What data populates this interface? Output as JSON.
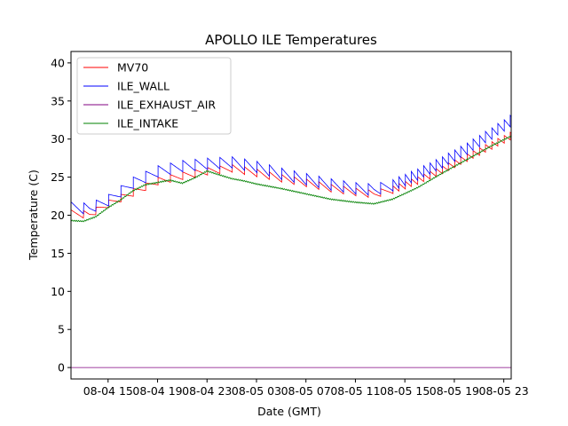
{
  "chart_data": {
    "type": "line",
    "title": "APOLLO ILE Temperatures",
    "xlabel": "Date (GMT)",
    "ylabel": "Temperature (C)",
    "ylim": [
      -1.5,
      41.5
    ],
    "xlim_hours": [
      12.0,
      47.6
    ],
    "x_unit": "hours since 08-04 00:00 GMT",
    "x_tick_labels": [
      "08-04 15",
      "08-04 19",
      "08-04 23",
      "08-05 03",
      "08-05 07",
      "08-05 11",
      "08-05 15",
      "08-05 19",
      "08-05 23"
    ],
    "x_tick_hours": [
      15,
      19,
      23,
      27,
      31,
      35,
      39,
      43,
      47
    ],
    "y_ticks": [
      0,
      5,
      10,
      15,
      20,
      25,
      30,
      35,
      40
    ],
    "grid": false,
    "legend_position": "top-left",
    "series": [
      {
        "name": "MV70",
        "color": "#ff0000",
        "sawtooth_amp": 1.0,
        "points": [
          [
            12.0,
            20.2
          ],
          [
            13.5,
            20.1
          ],
          [
            15.0,
            21.5
          ],
          [
            17.0,
            23.0
          ],
          [
            19.0,
            24.5
          ],
          [
            21.0,
            25.2
          ],
          [
            23.0,
            25.8
          ],
          [
            25.0,
            26.2
          ],
          [
            27.0,
            25.6
          ],
          [
            29.0,
            24.9
          ],
          [
            31.0,
            24.3
          ],
          [
            33.0,
            23.6
          ],
          [
            35.0,
            23.1
          ],
          [
            36.5,
            22.8
          ],
          [
            38.0,
            23.4
          ],
          [
            40.0,
            24.6
          ],
          [
            42.0,
            26.0
          ],
          [
            44.0,
            27.6
          ],
          [
            46.0,
            29.2
          ],
          [
            47.6,
            30.5
          ]
        ]
      },
      {
        "name": "ILE_WALL",
        "color": "#0000ff",
        "sawtooth_amp": 1.5,
        "points": [
          [
            12.0,
            21.0
          ],
          [
            13.5,
            20.9
          ],
          [
            15.0,
            22.0
          ],
          [
            17.0,
            24.3
          ],
          [
            19.0,
            25.8
          ],
          [
            21.0,
            26.5
          ],
          [
            23.0,
            26.8
          ],
          [
            25.0,
            27.0
          ],
          [
            27.0,
            26.4
          ],
          [
            29.0,
            25.5
          ],
          [
            31.0,
            24.8
          ],
          [
            33.0,
            24.1
          ],
          [
            35.0,
            23.6
          ],
          [
            36.5,
            23.4
          ],
          [
            38.0,
            24.0
          ],
          [
            40.0,
            25.4
          ],
          [
            42.0,
            27.0
          ],
          [
            44.0,
            28.8
          ],
          [
            46.0,
            30.8
          ],
          [
            47.6,
            32.5
          ]
        ]
      },
      {
        "name": "ILE_EXHAUST_AIR",
        "color": "#800080",
        "sawtooth_amp": 0.0,
        "points": [
          [
            12.0,
            0.0
          ],
          [
            47.6,
            0.0
          ]
        ]
      },
      {
        "name": "ILE_INTAKE",
        "color": "#008000",
        "sawtooth_amp": 0.0,
        "points": [
          [
            12.0,
            19.3
          ],
          [
            13.0,
            19.2
          ],
          [
            14.0,
            19.8
          ],
          [
            15.0,
            21.0
          ],
          [
            16.0,
            22.0
          ],
          [
            17.0,
            23.2
          ],
          [
            18.0,
            24.0
          ],
          [
            19.0,
            24.3
          ],
          [
            20.0,
            24.6
          ],
          [
            21.0,
            24.2
          ],
          [
            22.0,
            24.9
          ],
          [
            23.0,
            25.8
          ],
          [
            24.0,
            25.3
          ],
          [
            25.0,
            24.8
          ],
          [
            26.0,
            24.5
          ],
          [
            27.0,
            24.1
          ],
          [
            29.0,
            23.5
          ],
          [
            31.0,
            22.8
          ],
          [
            33.0,
            22.1
          ],
          [
            35.0,
            21.7
          ],
          [
            36.5,
            21.5
          ],
          [
            38.0,
            22.1
          ],
          [
            40.0,
            23.6
          ],
          [
            42.0,
            25.5
          ],
          [
            44.0,
            27.3
          ],
          [
            46.0,
            29.1
          ],
          [
            47.6,
            30.4
          ]
        ]
      }
    ]
  }
}
